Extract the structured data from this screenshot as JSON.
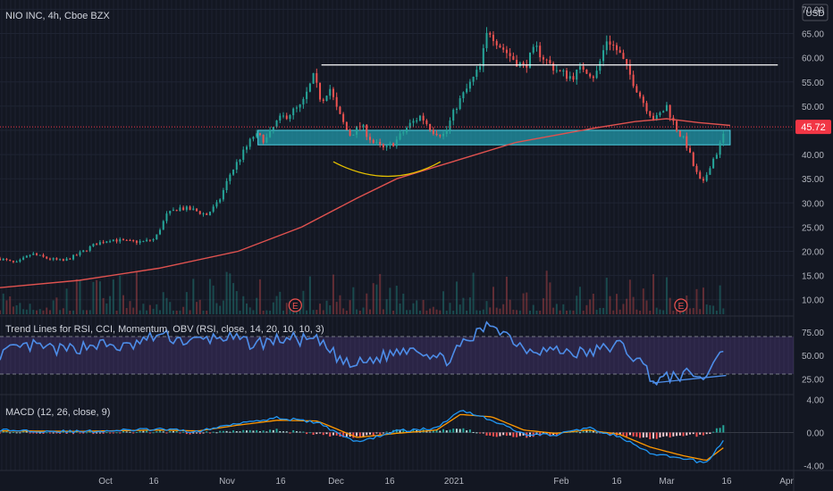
{
  "header": {
    "symbol_line": "NIO INC, 4h, Cboe BZX",
    "currency": "USD"
  },
  "colors": {
    "background": "#131722",
    "up": "#26a69a",
    "down": "#ef5350",
    "ma": "#e0524f",
    "zone_fill": "#26c6da",
    "rsi": "#4d8de8",
    "macd": "#2196f3",
    "signal": "#ff9800",
    "price_badge": "#f23645"
  },
  "chart_data": [
    {
      "type": "candlestick",
      "panel": "price",
      "title": "NIO INC, 4h, Cboe BZX",
      "y_unit": "USD",
      "y_ticks": [
        10,
        15,
        20,
        25,
        30,
        35,
        40,
        45,
        50,
        55,
        60,
        65,
        70
      ],
      "ylim": [
        7,
        71
      ],
      "x_tick_labels": [
        "Oct",
        "16",
        "Nov",
        "16",
        "Dec",
        "16",
        "2021",
        "Feb",
        "16",
        "Mar",
        "16",
        "Apr"
      ],
      "last_price": "45.72",
      "close_path": [
        {
          "x": 0,
          "y": 18.5
        },
        {
          "x": 0.02,
          "y": 17.5
        },
        {
          "x": 0.04,
          "y": 19.5
        },
        {
          "x": 0.06,
          "y": 18.5
        },
        {
          "x": 0.08,
          "y": 18.0
        },
        {
          "x": 0.1,
          "y": 19.5
        },
        {
          "x": 0.12,
          "y": 21.5
        },
        {
          "x": 0.14,
          "y": 22.5
        },
        {
          "x": 0.16,
          "y": 22.0
        },
        {
          "x": 0.18,
          "y": 22.0
        },
        {
          "x": 0.195,
          "y": 22.5
        },
        {
          "x": 0.21,
          "y": 27.5
        },
        {
          "x": 0.225,
          "y": 29.0
        },
        {
          "x": 0.245,
          "y": 28.5
        },
        {
          "x": 0.26,
          "y": 27.5
        },
        {
          "x": 0.275,
          "y": 30.0
        },
        {
          "x": 0.29,
          "y": 36.0
        },
        {
          "x": 0.305,
          "y": 40.0
        },
        {
          "x": 0.32,
          "y": 44.0
        },
        {
          "x": 0.335,
          "y": 43.0
        },
        {
          "x": 0.35,
          "y": 47.0
        },
        {
          "x": 0.365,
          "y": 48.5
        },
        {
          "x": 0.38,
          "y": 50.0
        },
        {
          "x": 0.395,
          "y": 56.0
        },
        {
          "x": 0.405,
          "y": 51.0
        },
        {
          "x": 0.415,
          "y": 54.0
        },
        {
          "x": 0.425,
          "y": 49.0
        },
        {
          "x": 0.44,
          "y": 44.0
        },
        {
          "x": 0.455,
          "y": 46.0
        },
        {
          "x": 0.47,
          "y": 42.5
        },
        {
          "x": 0.485,
          "y": 41.0
        },
        {
          "x": 0.5,
          "y": 43.0
        },
        {
          "x": 0.515,
          "y": 46.0
        },
        {
          "x": 0.53,
          "y": 48.0
        },
        {
          "x": 0.545,
          "y": 45.0
        },
        {
          "x": 0.56,
          "y": 44.0
        },
        {
          "x": 0.575,
          "y": 50.0
        },
        {
          "x": 0.59,
          "y": 54.0
        },
        {
          "x": 0.605,
          "y": 58.0
        },
        {
          "x": 0.615,
          "y": 66.0
        },
        {
          "x": 0.63,
          "y": 62.5
        },
        {
          "x": 0.645,
          "y": 60.0
        },
        {
          "x": 0.66,
          "y": 58.0
        },
        {
          "x": 0.675,
          "y": 62.0
        },
        {
          "x": 0.69,
          "y": 59.0
        },
        {
          "x": 0.705,
          "y": 57.0
        },
        {
          "x": 0.72,
          "y": 56.0
        },
        {
          "x": 0.735,
          "y": 58.0
        },
        {
          "x": 0.75,
          "y": 56.0
        },
        {
          "x": 0.765,
          "y": 64.0
        },
        {
          "x": 0.78,
          "y": 61.0
        },
        {
          "x": 0.795,
          "y": 56.0
        },
        {
          "x": 0.81,
          "y": 51.0
        },
        {
          "x": 0.825,
          "y": 47.0
        },
        {
          "x": 0.84,
          "y": 50.0
        },
        {
          "x": 0.85,
          "y": 46.0
        },
        {
          "x": 0.865,
          "y": 42.0
        },
        {
          "x": 0.875,
          "y": 37.0
        },
        {
          "x": 0.885,
          "y": 33.5
        },
        {
          "x": 0.895,
          "y": 38.0
        },
        {
          "x": 0.905,
          "y": 41.0
        },
        {
          "x": 0.915,
          "y": 45.72
        }
      ],
      "moving_average_path": [
        {
          "x": 0,
          "y": 12.5
        },
        {
          "x": 0.1,
          "y": 14.0
        },
        {
          "x": 0.2,
          "y": 16.5
        },
        {
          "x": 0.3,
          "y": 20.0
        },
        {
          "x": 0.38,
          "y": 25.0
        },
        {
          "x": 0.45,
          "y": 31.0
        },
        {
          "x": 0.5,
          "y": 35.0
        },
        {
          "x": 0.55,
          "y": 37.5
        },
        {
          "x": 0.6,
          "y": 40.0
        },
        {
          "x": 0.65,
          "y": 42.5
        },
        {
          "x": 0.7,
          "y": 44.0
        },
        {
          "x": 0.75,
          "y": 45.5
        },
        {
          "x": 0.8,
          "y": 46.8
        },
        {
          "x": 0.84,
          "y": 47.4
        },
        {
          "x": 0.88,
          "y": 46.6
        },
        {
          "x": 0.92,
          "y": 46.0
        }
      ],
      "annotations": {
        "resistance_line": {
          "y": 58.5,
          "x_start": 0.405,
          "x_end": 0.98
        },
        "support_zone": {
          "y_low": 42.0,
          "y_high": 45.0,
          "x_start": 0.325,
          "x_end": 0.92
        },
        "rounded_bottom_arc": {
          "x_start": 0.42,
          "x_mid": 0.49,
          "x_end": 0.555,
          "y_ends": 38.5,
          "y_mid": 35.5
        },
        "earnings_markers": [
          {
            "x": 0.372,
            "label": "E"
          },
          {
            "x": 0.858,
            "label": "E"
          }
        ]
      }
    },
    {
      "type": "line",
      "panel": "rsi",
      "title": "Trend Lines for RSI, CCI, Momentum, OBV (RSI, close, 14, 20, 10, 10, 3)",
      "y_ticks": [
        25,
        50,
        75
      ],
      "ylim": [
        10,
        90
      ],
      "bands": [
        30,
        70
      ],
      "series_path": [
        {
          "x": 0,
          "y": 52
        },
        {
          "x": 0.04,
          "y": 60
        },
        {
          "x": 0.08,
          "y": 55
        },
        {
          "x": 0.12,
          "y": 62
        },
        {
          "x": 0.16,
          "y": 58
        },
        {
          "x": 0.2,
          "y": 72
        },
        {
          "x": 0.24,
          "y": 64
        },
        {
          "x": 0.28,
          "y": 70
        },
        {
          "x": 0.32,
          "y": 62
        },
        {
          "x": 0.36,
          "y": 68
        },
        {
          "x": 0.4,
          "y": 65
        },
        {
          "x": 0.44,
          "y": 38
        },
        {
          "x": 0.48,
          "y": 48
        },
        {
          "x": 0.52,
          "y": 60
        },
        {
          "x": 0.56,
          "y": 44
        },
        {
          "x": 0.6,
          "y": 72
        },
        {
          "x": 0.62,
          "y": 85
        },
        {
          "x": 0.66,
          "y": 58
        },
        {
          "x": 0.7,
          "y": 55
        },
        {
          "x": 0.74,
          "y": 52
        },
        {
          "x": 0.78,
          "y": 62
        },
        {
          "x": 0.81,
          "y": 40
        },
        {
          "x": 0.825,
          "y": 22
        },
        {
          "x": 0.85,
          "y": 28
        },
        {
          "x": 0.875,
          "y": 30
        },
        {
          "x": 0.89,
          "y": 24
        },
        {
          "x": 0.9,
          "y": 48
        },
        {
          "x": 0.915,
          "y": 62
        }
      ],
      "divergence_line": {
        "x_start": 0.822,
        "y_start": 20.5,
        "x_end": 0.915,
        "y_end": 28.5
      }
    },
    {
      "type": "line",
      "panel": "macd",
      "title": "MACD (12, 26, close, 9)",
      "y_tick_labels": [
        "4.00",
        "0.00",
        "-4.00"
      ],
      "y_ticks": [
        4,
        0,
        -4
      ],
      "ylim": [
        -4.4,
        4.4
      ],
      "series": [
        {
          "name": "MACD",
          "values_path": [
            {
              "x": 0,
              "y": 0.3
            },
            {
              "x": 0.1,
              "y": 0.1
            },
            {
              "x": 0.2,
              "y": 0.4
            },
            {
              "x": 0.25,
              "y": 0.1
            },
            {
              "x": 0.3,
              "y": 1.2
            },
            {
              "x": 0.35,
              "y": 1.8
            },
            {
              "x": 0.4,
              "y": 1.2
            },
            {
              "x": 0.45,
              "y": -1.2
            },
            {
              "x": 0.5,
              "y": 0.2
            },
            {
              "x": 0.55,
              "y": 0.5
            },
            {
              "x": 0.58,
              "y": 2.8
            },
            {
              "x": 0.62,
              "y": 1.5
            },
            {
              "x": 0.66,
              "y": -0.2
            },
            {
              "x": 0.7,
              "y": -0.3
            },
            {
              "x": 0.74,
              "y": 0.6
            },
            {
              "x": 0.78,
              "y": -0.5
            },
            {
              "x": 0.82,
              "y": -2.6
            },
            {
              "x": 0.86,
              "y": -3.2
            },
            {
              "x": 0.89,
              "y": -3.7
            },
            {
              "x": 0.915,
              "y": -0.5
            }
          ]
        },
        {
          "name": "Signal",
          "values_path": [
            {
              "x": 0,
              "y": 0.2
            },
            {
              "x": 0.1,
              "y": 0.15
            },
            {
              "x": 0.2,
              "y": 0.3
            },
            {
              "x": 0.25,
              "y": 0.2
            },
            {
              "x": 0.3,
              "y": 0.9
            },
            {
              "x": 0.35,
              "y": 1.5
            },
            {
              "x": 0.4,
              "y": 1.4
            },
            {
              "x": 0.45,
              "y": -0.6
            },
            {
              "x": 0.5,
              "y": -0.1
            },
            {
              "x": 0.55,
              "y": 0.3
            },
            {
              "x": 0.58,
              "y": 2.2
            },
            {
              "x": 0.62,
              "y": 1.9
            },
            {
              "x": 0.66,
              "y": 0.3
            },
            {
              "x": 0.7,
              "y": -0.1
            },
            {
              "x": 0.74,
              "y": 0.3
            },
            {
              "x": 0.78,
              "y": -0.2
            },
            {
              "x": 0.82,
              "y": -1.8
            },
            {
              "x": 0.86,
              "y": -2.8
            },
            {
              "x": 0.89,
              "y": -3.4
            },
            {
              "x": 0.915,
              "y": -1.6
            }
          ]
        }
      ]
    }
  ]
}
